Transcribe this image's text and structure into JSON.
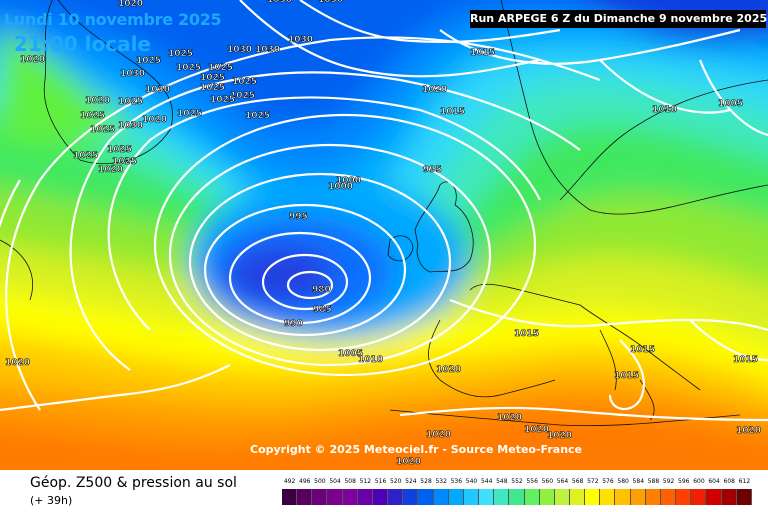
{
  "header": {
    "date": "Lundi 10 novembre 2025",
    "time": "21:00 locale",
    "run": "Run ARPEGE 6 Z du Dimanche 9 novembre 2025"
  },
  "copyright": "Copyright © 2025 Meteociel.fr - Source Meteo-France",
  "legend": {
    "title": "Géop. Z500 & pression au sol",
    "subtitle": "(+ 39h)",
    "scale_values": [
      "492",
      "496",
      "500",
      "504",
      "508",
      "512",
      "516",
      "520",
      "524",
      "528",
      "532",
      "536",
      "540",
      "544",
      "548",
      "552",
      "556",
      "560",
      "564",
      "568",
      "572",
      "576",
      "580",
      "584",
      "588",
      "592",
      "596",
      "600",
      "604",
      "608",
      "612"
    ],
    "scale_colors": [
      "#3a0040",
      "#5a0060",
      "#6a007a",
      "#7a0090",
      "#80009a",
      "#6a00a8",
      "#5000b8",
      "#3020c8",
      "#1040e0",
      "#0060f0",
      "#0088ff",
      "#00a8ff",
      "#20c8ff",
      "#40e0f8",
      "#40e8c0",
      "#40e890",
      "#60f060",
      "#90f040",
      "#c0f040",
      "#e0f020",
      "#ffff00",
      "#ffe000",
      "#ffc000",
      "#ffa000",
      "#ff8000",
      "#ff6000",
      "#ff4000",
      "#f02000",
      "#d00000",
      "#a00000",
      "#700000"
    ]
  },
  "isobar_labels": [
    "1020",
    "1030",
    "1030",
    "1025",
    "1020",
    "1025",
    "1030",
    "1030",
    "1030",
    "1025",
    "1025",
    "1025",
    "1025",
    "1030",
    "1020",
    "1025",
    "1030",
    "1020",
    "1025",
    "1025",
    "1025",
    "1025",
    "1025",
    "1025",
    "1030",
    "1025",
    "1020",
    "1025",
    "1025",
    "1025",
    "1020",
    "1015",
    "1015",
    "1010",
    "1005",
    "1000",
    "1000",
    "995",
    "995",
    "990",
    "985",
    "980",
    "1015",
    "1015",
    "1015",
    "1015",
    "1005",
    "1010",
    "1020",
    "1020",
    "1020",
    "1020",
    "1020",
    "1020",
    "1020",
    "1020"
  ]
}
